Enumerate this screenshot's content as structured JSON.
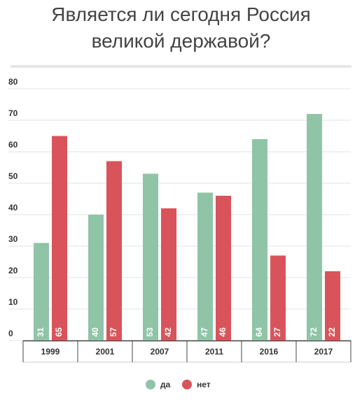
{
  "chart_data": {
    "type": "bar",
    "title": "Является ли сегодня Россия великой державой?",
    "categories": [
      "1999",
      "2001",
      "2007",
      "2011",
      "2016",
      "2017"
    ],
    "series": [
      {
        "name": "да",
        "color": "#8fc4a7",
        "values": [
          31,
          40,
          53,
          47,
          64,
          72
        ]
      },
      {
        "name": "нет",
        "color": "#d9545a",
        "values": [
          65,
          57,
          42,
          46,
          27,
          22
        ]
      }
    ],
    "ylim": [
      0,
      80
    ],
    "yticks": [
      0,
      10,
      20,
      30,
      40,
      50,
      60,
      70,
      80
    ],
    "grid": true,
    "legend": "bottom"
  }
}
